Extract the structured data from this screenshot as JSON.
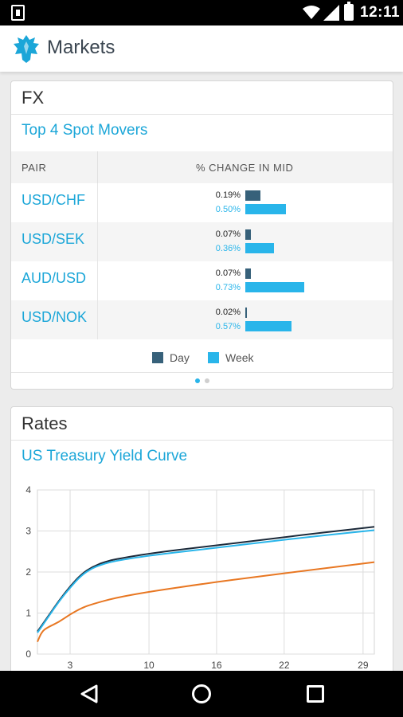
{
  "status_bar": {
    "time": "12:11",
    "icons": [
      "notification-icon",
      "wifi-icon",
      "signal-icon",
      "battery-icon"
    ]
  },
  "app_bar": {
    "title": "Markets",
    "logo_icon": "eagle-logo-icon"
  },
  "fx_card": {
    "title": "FX",
    "subtitle": "Top 4 Spot Movers",
    "columns": {
      "pair": "PAIR",
      "change": "% CHANGE IN MID"
    },
    "rows": [
      {
        "pair": "USD/CHF",
        "day": "0.19%",
        "week": "0.50%",
        "day_value": 0.19,
        "week_value": 0.5
      },
      {
        "pair": "USD/SEK",
        "day": "0.07%",
        "week": "0.36%",
        "day_value": 0.07,
        "week_value": 0.36
      },
      {
        "pair": "AUD/USD",
        "day": "0.07%",
        "week": "0.73%",
        "day_value": 0.07,
        "week_value": 0.73
      },
      {
        "pair": "USD/NOK",
        "day": "0.02%",
        "week": "0.57%",
        "day_value": 0.02,
        "week_value": 0.57
      }
    ],
    "legend": {
      "day": "Day",
      "week": "Week"
    },
    "colors": {
      "day": "#37617a",
      "week": "#29b5ea"
    },
    "pager": {
      "pages": 2,
      "current": 1
    }
  },
  "rates_card": {
    "title": "Rates",
    "subtitle": "US Treasury Yield Curve",
    "chart_data": {
      "type": "line",
      "title": "",
      "xlabel": "",
      "ylabel": "",
      "x_ticks": [
        3,
        10,
        16,
        22,
        29
      ],
      "y_ticks": [
        0,
        1,
        2,
        3,
        4
      ],
      "xlim": [
        0.1,
        30
      ],
      "ylim": [
        0,
        4
      ],
      "grid": true,
      "series": [
        {
          "color": "#1c2a3a",
          "points": [
            [
              0.1,
              0.55
            ],
            [
              1,
              0.9
            ],
            [
              2,
              1.3
            ],
            [
              3,
              1.65
            ],
            [
              4,
              1.95
            ],
            [
              5,
              2.13
            ],
            [
              6,
              2.24
            ],
            [
              7,
              2.31
            ],
            [
              10,
              2.45
            ],
            [
              15,
              2.62
            ],
            [
              20,
              2.78
            ],
            [
              25,
              2.95
            ],
            [
              30,
              3.1
            ]
          ]
        },
        {
          "color": "#29b5ea",
          "points": [
            [
              0.1,
              0.52
            ],
            [
              1,
              0.88
            ],
            [
              2,
              1.28
            ],
            [
              3,
              1.62
            ],
            [
              4,
              1.92
            ],
            [
              5,
              2.1
            ],
            [
              6,
              2.2
            ],
            [
              7,
              2.27
            ],
            [
              10,
              2.4
            ],
            [
              15,
              2.56
            ],
            [
              20,
              2.72
            ],
            [
              25,
              2.88
            ],
            [
              30,
              3.02
            ]
          ]
        },
        {
          "color": "#e87722",
          "points": [
            [
              0.1,
              0.3
            ],
            [
              0.5,
              0.55
            ],
            [
              1,
              0.65
            ],
            [
              2,
              0.78
            ],
            [
              3,
              0.97
            ],
            [
              4,
              1.12
            ],
            [
              5,
              1.22
            ],
            [
              7,
              1.37
            ],
            [
              10,
              1.52
            ],
            [
              15,
              1.72
            ],
            [
              20,
              1.9
            ],
            [
              25,
              2.07
            ],
            [
              30,
              2.24
            ]
          ]
        }
      ]
    }
  }
}
